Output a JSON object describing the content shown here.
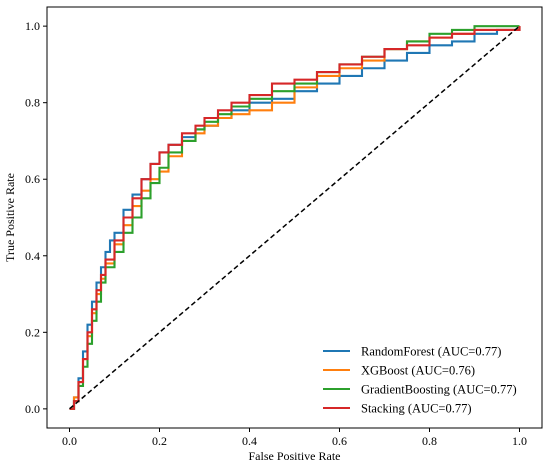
{
  "chart_data": {
    "type": "line",
    "xlabel": "False Positive Rate",
    "ylabel": "True Positive Rate",
    "xlim": [
      -0.05,
      1.05
    ],
    "ylim": [
      -0.05,
      1.05
    ],
    "xticks": [
      "0.0",
      "0.2",
      "0.4",
      "0.6",
      "0.8",
      "1.0"
    ],
    "yticks": [
      "0.0",
      "0.2",
      "0.4",
      "0.6",
      "0.8",
      "1.0"
    ],
    "grid": false,
    "legend_position": "lower-right",
    "step_curves": true,
    "diagonal": {
      "x": [
        0,
        1
      ],
      "y": [
        0,
        1
      ],
      "style": "dashed",
      "color": "#000000"
    },
    "series": [
      {
        "name": "RandomForest (AUC=0.77)",
        "color": "#1f77b4",
        "x": [
          0,
          0.01,
          0.02,
          0.03,
          0.04,
          0.05,
          0.06,
          0.07,
          0.08,
          0.09,
          0.1,
          0.12,
          0.14,
          0.16,
          0.18,
          0.2,
          0.22,
          0.25,
          0.28,
          0.3,
          0.33,
          0.36,
          0.4,
          0.45,
          0.5,
          0.55,
          0.6,
          0.65,
          0.7,
          0.75,
          0.8,
          0.85,
          0.9,
          0.95,
          1.0
        ],
        "y": [
          0,
          0.03,
          0.08,
          0.15,
          0.22,
          0.28,
          0.33,
          0.37,
          0.41,
          0.44,
          0.46,
          0.52,
          0.56,
          0.6,
          0.64,
          0.67,
          0.69,
          0.71,
          0.73,
          0.74,
          0.76,
          0.78,
          0.8,
          0.81,
          0.83,
          0.85,
          0.87,
          0.89,
          0.91,
          0.93,
          0.95,
          0.96,
          0.98,
          0.99,
          1.0
        ]
      },
      {
        "name": "XGBoost (AUC=0.76)",
        "color": "#ff7f0e",
        "x": [
          0,
          0.01,
          0.02,
          0.03,
          0.04,
          0.05,
          0.06,
          0.07,
          0.08,
          0.1,
          0.12,
          0.14,
          0.16,
          0.18,
          0.2,
          0.22,
          0.25,
          0.28,
          0.3,
          0.33,
          0.36,
          0.4,
          0.45,
          0.5,
          0.55,
          0.6,
          0.65,
          0.7,
          0.75,
          0.8,
          0.85,
          0.9,
          0.95,
          1.0
        ],
        "y": [
          0,
          0.03,
          0.07,
          0.13,
          0.19,
          0.25,
          0.3,
          0.34,
          0.38,
          0.43,
          0.48,
          0.53,
          0.57,
          0.6,
          0.62,
          0.66,
          0.7,
          0.72,
          0.74,
          0.76,
          0.77,
          0.78,
          0.8,
          0.84,
          0.87,
          0.89,
          0.91,
          0.94,
          0.96,
          0.97,
          0.98,
          0.99,
          0.99,
          1.0
        ]
      },
      {
        "name": "GradientBoosting (AUC=0.77)",
        "color": "#2ca02c",
        "x": [
          0,
          0.01,
          0.02,
          0.03,
          0.04,
          0.05,
          0.06,
          0.07,
          0.08,
          0.1,
          0.12,
          0.14,
          0.16,
          0.18,
          0.2,
          0.22,
          0.25,
          0.28,
          0.3,
          0.33,
          0.36,
          0.4,
          0.45,
          0.5,
          0.55,
          0.6,
          0.65,
          0.7,
          0.75,
          0.8,
          0.85,
          0.9,
          0.95,
          1.0
        ],
        "y": [
          0,
          0.02,
          0.06,
          0.11,
          0.17,
          0.23,
          0.28,
          0.33,
          0.37,
          0.41,
          0.46,
          0.5,
          0.55,
          0.59,
          0.63,
          0.67,
          0.7,
          0.73,
          0.75,
          0.77,
          0.79,
          0.81,
          0.83,
          0.85,
          0.88,
          0.9,
          0.92,
          0.94,
          0.96,
          0.98,
          0.99,
          1.0,
          1.0,
          1.0
        ]
      },
      {
        "name": "Stacking (AUC=0.77)",
        "color": "#d62728",
        "x": [
          0,
          0.01,
          0.02,
          0.03,
          0.04,
          0.05,
          0.06,
          0.07,
          0.08,
          0.1,
          0.12,
          0.14,
          0.16,
          0.18,
          0.2,
          0.22,
          0.25,
          0.28,
          0.3,
          0.33,
          0.36,
          0.4,
          0.45,
          0.5,
          0.55,
          0.6,
          0.65,
          0.7,
          0.75,
          0.8,
          0.85,
          0.9,
          0.95,
          1.0
        ],
        "y": [
          0,
          0.02,
          0.07,
          0.13,
          0.2,
          0.26,
          0.31,
          0.35,
          0.39,
          0.44,
          0.5,
          0.55,
          0.6,
          0.64,
          0.67,
          0.69,
          0.72,
          0.74,
          0.76,
          0.78,
          0.8,
          0.82,
          0.85,
          0.86,
          0.88,
          0.9,
          0.92,
          0.94,
          0.95,
          0.97,
          0.98,
          0.99,
          0.99,
          1.0
        ]
      }
    ]
  }
}
